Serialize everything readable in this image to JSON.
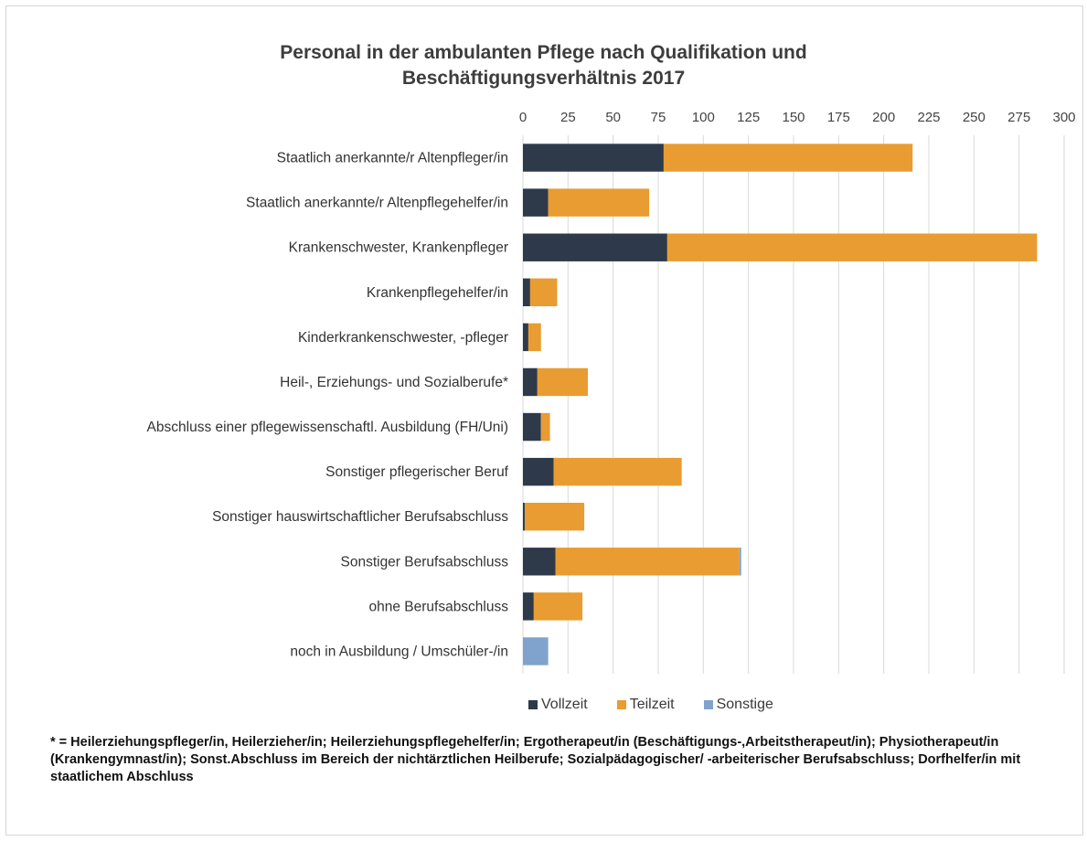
{
  "chart_data": {
    "type": "bar",
    "orientation": "horizontal",
    "stacked": true,
    "title_lines": [
      "Personal in der ambulanten Pflege nach Qualifikation und",
      "Beschäftigungsverhältnis 2017"
    ],
    "categories": [
      "Staatlich anerkannte/r Altenpfleger/in",
      "Staatlich anerkannte/r Altenpflegehelfer/in",
      "Krankenschwester, Krankenpfleger",
      "Krankenpflegehelfer/in",
      "Kinderkrankenschwester, -pfleger",
      "Heil-, Erziehungs- und Sozialberufe*",
      "Abschluss einer pflegewissenschaftl. Ausbildung (FH/Uni)",
      "Sonstiger pflegerischer Beruf",
      "Sonstiger hauswirtschaftlicher Berufsabschluss",
      "Sonstiger Berufsabschluss",
      "ohne Berufsabschluss",
      "noch in Ausbildung / Umschüler-/in"
    ],
    "series": [
      {
        "name": "Vollzeit",
        "color": "#2e3a4a",
        "values": [
          78,
          14,
          80,
          4,
          3,
          8,
          10,
          17,
          1,
          18,
          6,
          0
        ]
      },
      {
        "name": "Teilzeit",
        "color": "#e89c31",
        "values": [
          138,
          56,
          205,
          15,
          7,
          28,
          5,
          71,
          33,
          102,
          27,
          0
        ]
      },
      {
        "name": "Sonstige",
        "color": "#7fa3cc",
        "values": [
          0,
          0,
          0,
          0,
          0,
          0,
          0,
          0,
          0,
          1,
          0,
          14
        ]
      }
    ],
    "xlim": [
      0,
      300
    ],
    "xticks": [
      0,
      25,
      50,
      75,
      100,
      125,
      150,
      175,
      200,
      225,
      250,
      275,
      300
    ],
    "axis_position": "top",
    "grid": true,
    "legend_position": "bottom"
  },
  "footnote": "* = Heilerziehungspfleger/in, Heilerzieher/in; Heilerziehungspflegehelfer/in; Ergotherapeut/in (Beschäftigungs-,Arbeitstherapeut/in); Physiotherapeut/in (Krankengymnast/in); Sonst.Abschluss im Bereich der nichtärztlichen Heilberufe; Sozialpädagogischer/ -arbeiterischer Berufsabschluss; Dorfhelfer/in mit staatlichem Abschluss"
}
